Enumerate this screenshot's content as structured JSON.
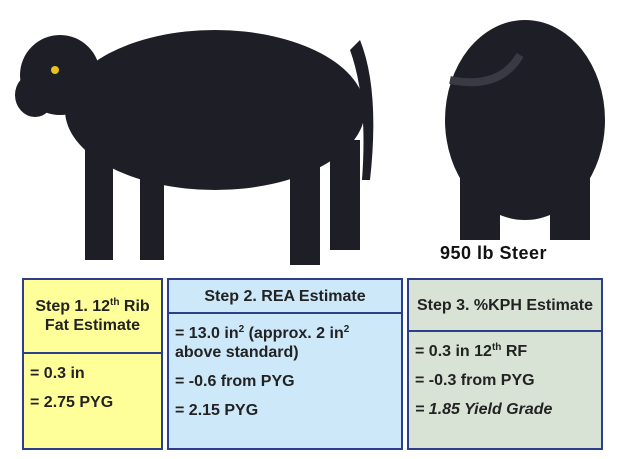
{
  "caption": "950 lb Steer",
  "boxes": [
    {
      "header": [
        {
          "text": "Step 1.  12"
        },
        {
          "sup": "th"
        },
        {
          "text": " Rib Fat Estimate"
        }
      ],
      "lines": [
        [
          {
            "text": "= 0.3 in"
          }
        ],
        [
          {
            "text": "= 2.75 PYG"
          }
        ]
      ]
    },
    {
      "header": [
        {
          "text": "Step 2. REA Estimate"
        }
      ],
      "lines": [
        [
          {
            "text": "= 13.0 in"
          },
          {
            "sup": "2"
          },
          {
            "text": " (approx. 2 in"
          },
          {
            "sup": "2"
          },
          {
            "text": " above standard)"
          }
        ],
        [
          {
            "text": "= -0.6 from PYG"
          }
        ],
        [
          {
            "text": "= 2.15 PYG"
          }
        ]
      ]
    },
    {
      "header": [
        {
          "text": "Step 3. %KPH Estimate"
        }
      ],
      "lines": [
        [
          {
            "text": "= 0.3 in 12"
          },
          {
            "sup": "th"
          },
          {
            "text": " RF"
          }
        ],
        [
          {
            "text": "= -0.3 from PYG"
          }
        ],
        [
          {
            "text": "= 1.85 Yield Grade"
          }
        ]
      ]
    }
  ]
}
